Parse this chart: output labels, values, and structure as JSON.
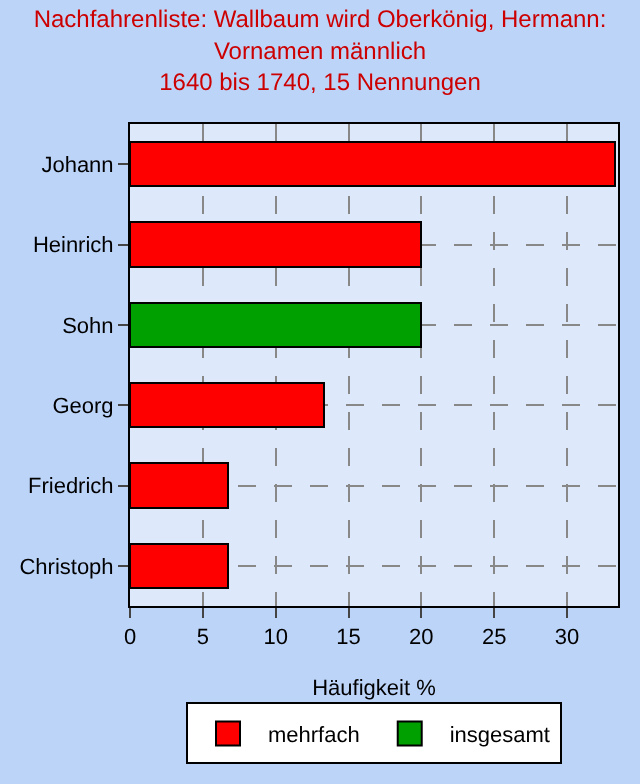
{
  "chart_data": {
    "type": "bar",
    "orientation": "horizontal",
    "stacked": true,
    "title": "Nachfahrenliste: Wallbaum wird Oberkönig, Hermann:\nVornamen männlich\n1640 bis 1740, 15 Nennungen",
    "xlabel": "Häufigkeit %",
    "categories": [
      "Johann",
      "Heinrich",
      "Sohn",
      "Georg",
      "Friedrich",
      "Christoph"
    ],
    "series": [
      {
        "name": "mehrfach",
        "color": "#ff0000",
        "values": [
          33.3,
          20,
          null,
          13.3,
          6.7,
          6.7
        ]
      },
      {
        "name": "insgesamt",
        "color": "#00a000",
        "values": [
          null,
          null,
          20,
          null,
          null,
          null
        ]
      }
    ],
    "xlim": [
      0,
      33.5
    ],
    "xticks": [
      0,
      5,
      10,
      15,
      20,
      25,
      30
    ],
    "grid": true,
    "legend": "bottom"
  }
}
